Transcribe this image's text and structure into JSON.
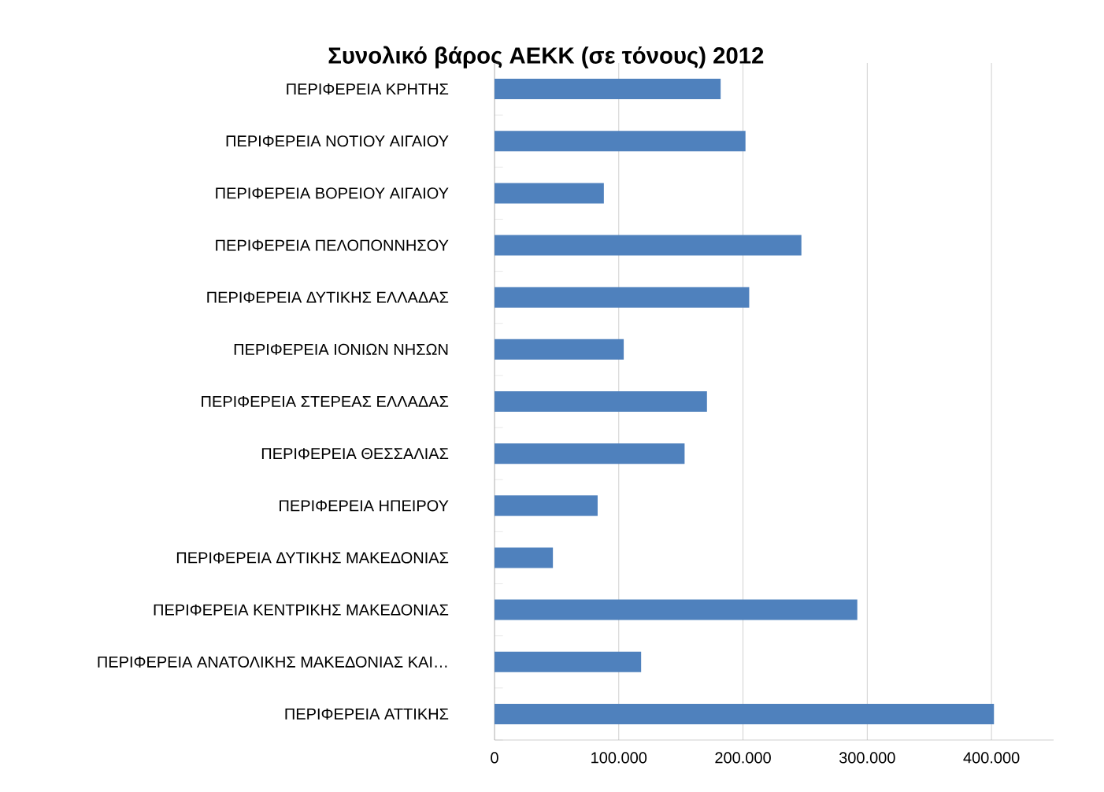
{
  "chart_data": {
    "type": "bar",
    "orientation": "horizontal",
    "title": "Συνολικό βάρος ΑΕΚΚ (σε τόνους) 2012",
    "categories": [
      "ΠΕΡΙΦΕΡΕΙΑ ΚΡΗΤΗΣ",
      "ΠΕΡΙΦΕΡΕΙΑ ΝΟΤΙΟΥ ΑΙΓΑΙΟΥ",
      "ΠΕΡΙΦΕΡΕΙΑ ΒΟΡΕΙΟΥ ΑΙΓΑΙΟΥ",
      "ΠΕΡΙΦΕΡΕΙΑ ΠΕΛΟΠΟΝΝΗΣΟΥ",
      "ΠΕΡΙΦΕΡΕΙΑ ΔΥΤΙΚΗΣ ΕΛΛΑΔΑΣ",
      "ΠΕΡΙΦΕΡΕΙΑ ΙΟΝΙΩΝ ΝΗΣΩΝ",
      "ΠΕΡΙΦΕΡΕΙΑ ΣΤΕΡΕΑΣ ΕΛΛΑΔΑΣ",
      "ΠΕΡΙΦΕΡΕΙΑ ΘΕΣΣΑΛΙΑΣ",
      "ΠΕΡΙΦΕΡΕΙΑ ΗΠΕΙΡΟΥ",
      "ΠΕΡΙΦΕΡΕΙΑ ΔΥΤΙΚΗΣ ΜΑΚΕΔΟΝΙΑΣ",
      "ΠΕΡΙΦΕΡΕΙΑ ΚΕΝΤΡΙΚΗΣ ΜΑΚΕΔΟΝΙΑΣ",
      "ΠΕΡΙΦΕΡΕΙΑ ΑΝΑΤΟΛΙΚΗΣ ΜΑΚΕΔΟΝΙΑΣ ΚΑΙ…",
      "ΠΕΡΙΦΕΡΕΙΑ ΑΤΤΙΚΗΣ"
    ],
    "values": [
      182000,
      202000,
      88000,
      247000,
      205000,
      104000,
      171000,
      153000,
      83000,
      47000,
      292000,
      118000,
      402000
    ],
    "color": "#4f81bd",
    "xlim": [
      0,
      450000
    ],
    "xticks": [
      0,
      {
        "value": 100000,
        "label": "100.000"
      },
      {
        "value": 200000,
        "label": "200.000"
      },
      {
        "value": 300000,
        "label": "300.000"
      },
      {
        "value": 400000,
        "label": "400.000"
      }
    ],
    "grid": "x"
  }
}
